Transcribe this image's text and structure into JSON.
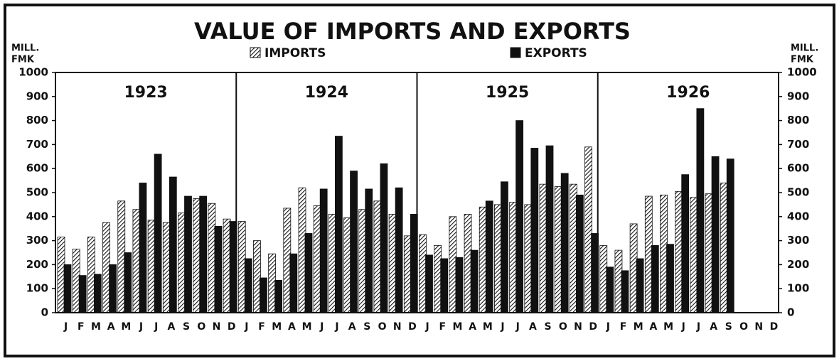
{
  "chart_data": {
    "type": "bar",
    "title": "VALUE OF IMPORTS AND EXPORTS",
    "y_label": [
      "MILL.",
      "FMK"
    ],
    "panel_titles": [
      "1923",
      "1924",
      "1925",
      "1926"
    ],
    "categories": [
      "J",
      "F",
      "M",
      "A",
      "M",
      "J",
      "J",
      "A",
      "S",
      "O",
      "N",
      "D",
      "J",
      "F",
      "M",
      "A",
      "M",
      "J",
      "J",
      "A",
      "S",
      "O",
      "N",
      "D",
      "J",
      "F",
      "M",
      "A",
      "M",
      "J",
      "J",
      "A",
      "S",
      "O",
      "N",
      "D",
      "J",
      "F",
      "M",
      "A",
      "M",
      "J",
      "J",
      "A",
      "S",
      "O",
      "N",
      "D"
    ],
    "series": [
      {
        "name": "IMPORTS",
        "color": "#111111",
        "pattern": "hatch",
        "values": [
          315,
          265,
          315,
          375,
          465,
          430,
          385,
          375,
          415,
          475,
          455,
          390,
          380,
          300,
          245,
          435,
          520,
          445,
          410,
          395,
          430,
          465,
          410,
          320,
          325,
          280,
          400,
          410,
          440,
          450,
          460,
          450,
          535,
          525,
          535,
          690,
          280,
          260,
          370,
          485,
          490,
          505,
          480,
          495,
          540,
          null,
          null,
          null
        ]
      },
      {
        "name": "EXPORTS",
        "color": "#111111",
        "pattern": "solid",
        "values": [
          200,
          155,
          160,
          200,
          250,
          540,
          660,
          565,
          485,
          485,
          360,
          380,
          225,
          145,
          135,
          245,
          330,
          515,
          735,
          590,
          515,
          620,
          520,
          410,
          240,
          225,
          230,
          260,
          465,
          545,
          800,
          685,
          695,
          580,
          490,
          330,
          190,
          175,
          225,
          280,
          285,
          575,
          850,
          650,
          640,
          null,
          null,
          null
        ]
      }
    ],
    "ylim": [
      0,
      1000
    ],
    "yticks": [
      0,
      100,
      200,
      300,
      400,
      500,
      600,
      700,
      800,
      900,
      1000
    ]
  }
}
